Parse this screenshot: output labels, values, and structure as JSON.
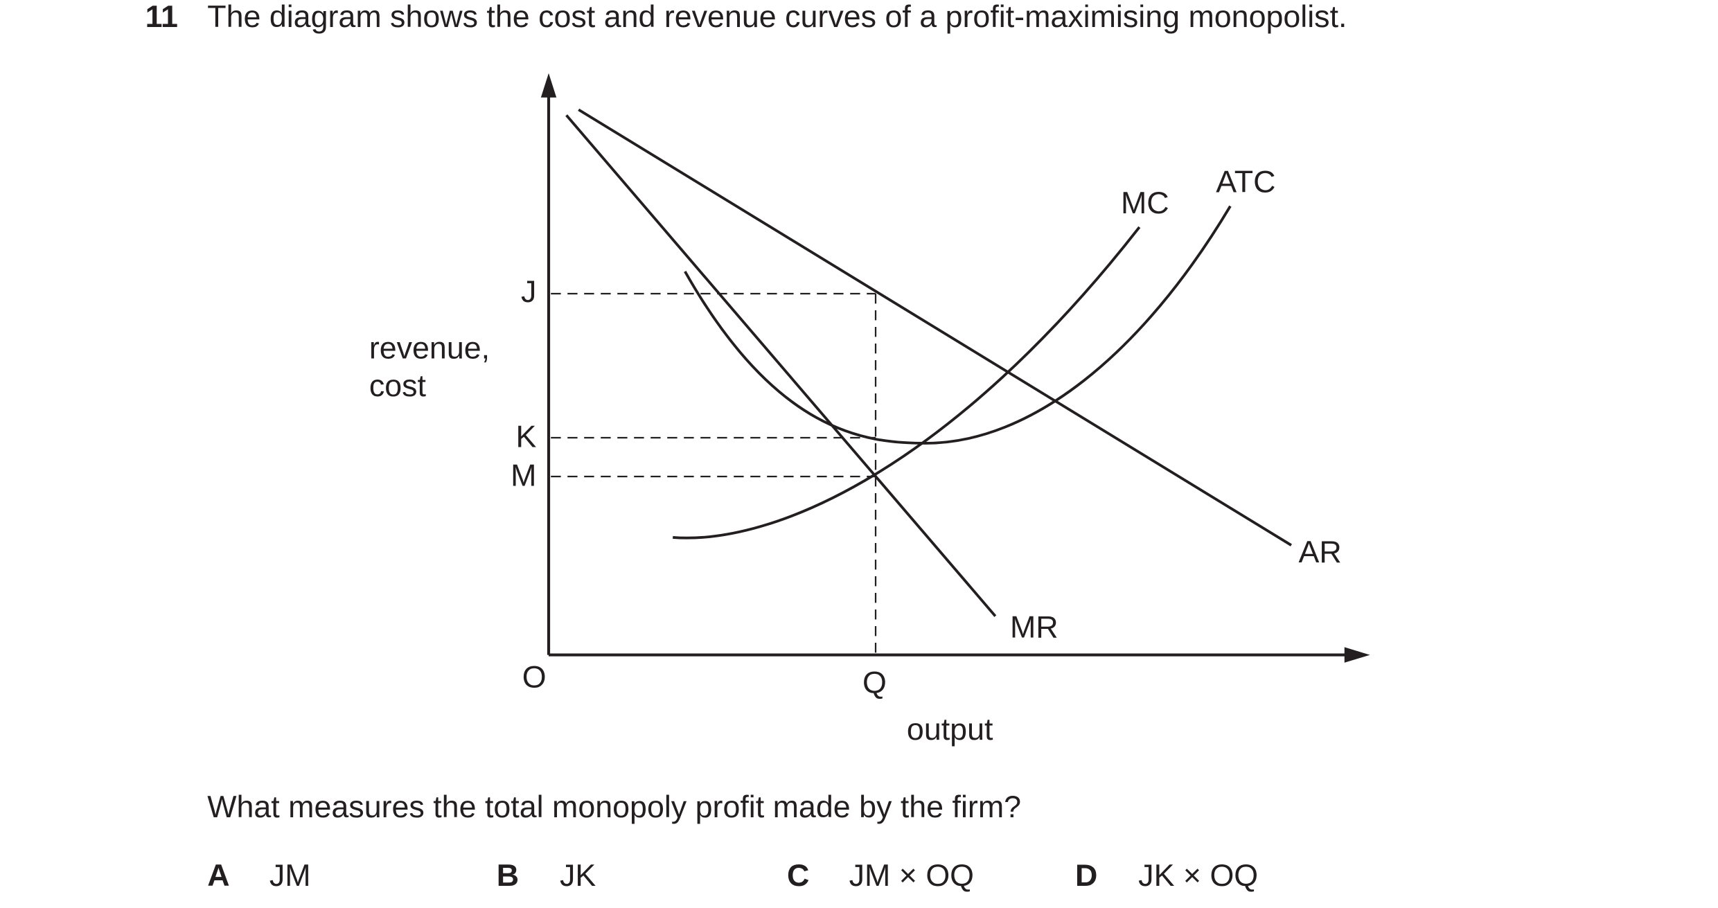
{
  "question": {
    "number": "11",
    "text": "The diagram shows the cost and revenue curves of a profit-maximising monopolist."
  },
  "diagram": {
    "y_axis_label": [
      "revenue,",
      "cost"
    ],
    "x_axis_label": "output",
    "origin": "O",
    "y_points": [
      "J",
      "K",
      "M"
    ],
    "x_points": [
      "Q"
    ],
    "curves": [
      "MC",
      "ATC",
      "AR",
      "MR"
    ]
  },
  "prompt": "What measures the total monopoly profit made by the firm?",
  "options": [
    {
      "letter": "A",
      "text": "JM"
    },
    {
      "letter": "B",
      "text": "JK"
    },
    {
      "letter": "C",
      "text": "JM × OQ"
    },
    {
      "letter": "D",
      "text": "JK × OQ"
    }
  ]
}
